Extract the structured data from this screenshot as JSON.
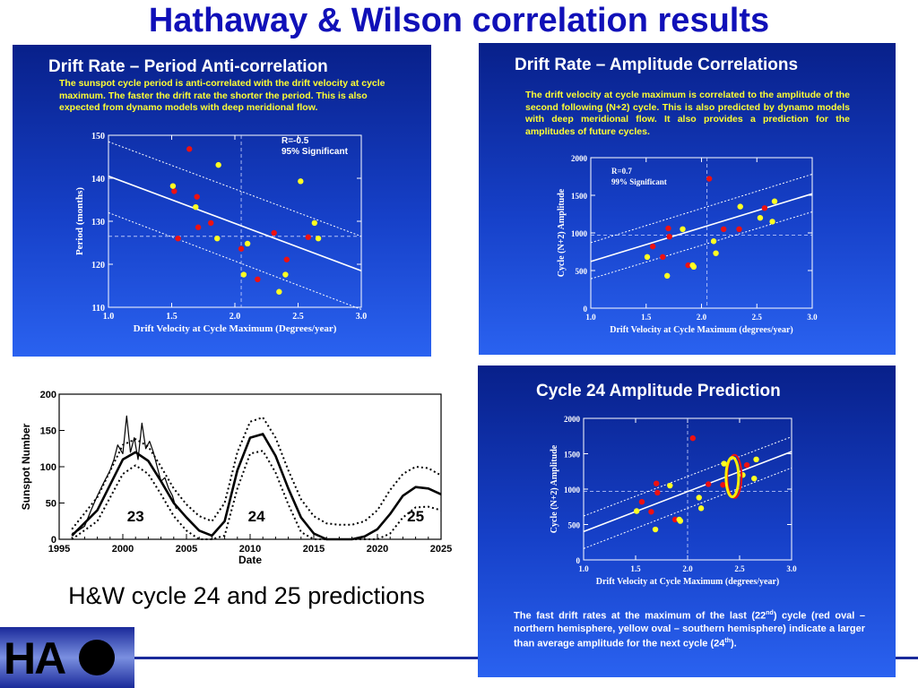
{
  "slide": {
    "title": "Hathaway & Wilson correlation results",
    "caption": "H&W cycle 24 and 25 predictions",
    "logo_text": "HA"
  },
  "panel1": {
    "title": "Drift Rate – Period Anti-correlation",
    "text": "The sunspot cycle period is anti-correlated with the drift velocity at cycle maximum. The faster the drift rate the shorter the period. This is also expected from dynamo models with deep meridional flow."
  },
  "panel2": {
    "title": "Drift Rate – Amplitude Correlations",
    "text": "The drift velocity at cycle maximum is correlated to the amplitude of the second following (N+2) cycle. This is also predicted by dynamo models with deep meridional flow. It also provides a prediction for the amplitudes of future cycles."
  },
  "panel3": {
    "title": "Cycle 24 Amplitude Prediction",
    "text_before": "The fast drift rates at the maximum of the last (22",
    "text_sup1": "nd",
    "text_mid": ") cycle (red oval – northern hemisphere, yellow oval – southern hemisphere) indicate a larger than average amplitude for the next cycle (24",
    "text_sup2": "th",
    "text_after": ")."
  },
  "colors": {
    "red_points": "#ee1111",
    "yellow_points": "#ffff22",
    "title_blue": "#1010b8"
  },
  "chart_data": [
    {
      "type": "scatter",
      "xlabel": "Drift Velocity at Cycle Maximum (Degrees/year)",
      "ylabel": "Period (months)",
      "xlim": [
        1.0,
        3.0
      ],
      "ylim": [
        110,
        150
      ],
      "xticks": [
        "1.0",
        "1.5",
        "2.0",
        "2.5",
        "3.0"
      ],
      "yticks": [
        "110",
        "120",
        "130",
        "140",
        "150"
      ],
      "annotation": [
        "R=-0.5",
        "95% Significant"
      ],
      "mean_x": 2.05,
      "mean_y": 126.5,
      "fit": {
        "x": [
          1.0,
          3.0
        ],
        "y": [
          140.5,
          118.5
        ]
      },
      "bound_upper": {
        "x": [
          1.0,
          3.0
        ],
        "y": [
          148.5,
          126.5
        ]
      },
      "bound_lower": {
        "x": [
          1.0,
          3.0
        ],
        "y": [
          132.0,
          109.5
        ]
      },
      "series": [
        {
          "name": "",
          "color": "red",
          "x": [
            1.52,
            1.55,
            1.64,
            1.7,
            1.71,
            1.81,
            2.05,
            2.18,
            2.31,
            2.41,
            2.58
          ],
          "y": [
            137.0,
            126.0,
            146.8,
            135.7,
            128.6,
            129.6,
            123.6,
            116.5,
            127.3,
            121.1,
            126.3
          ]
        },
        {
          "name": "",
          "color": "yellow",
          "x": [
            1.51,
            1.69,
            1.87,
            1.86,
            2.07,
            2.1,
            2.35,
            2.4,
            2.52,
            2.63,
            2.66
          ],
          "y": [
            138.2,
            133.3,
            143.1,
            126.0,
            117.6,
            124.8,
            113.6,
            117.6,
            139.3,
            129.6,
            126.0
          ]
        }
      ]
    },
    {
      "type": "scatter",
      "xlabel": "Drift Velocity at Cycle Maximum (degrees/year)",
      "ylabel": "Cycle (N+2) Amplitude",
      "xlim": [
        1.0,
        3.0
      ],
      "ylim": [
        0,
        2000
      ],
      "xticks": [
        "1.0",
        "1.5",
        "2.0",
        "2.5",
        "3.0"
      ],
      "yticks": [
        "0",
        "500",
        "1000",
        "1500",
        "2000"
      ],
      "annotation": [
        "R=0.7",
        "99% Significant"
      ],
      "mean_x": 2.05,
      "mean_y": 970,
      "fit": {
        "x": [
          1.0,
          3.0
        ],
        "y": [
          620,
          1520
        ]
      },
      "bound_upper": {
        "x": [
          1.0,
          3.0
        ],
        "y": [
          870,
          1780
        ]
      },
      "bound_lower": {
        "x": [
          1.0,
          3.0
        ],
        "y": [
          390,
          1280
        ]
      },
      "series": [
        {
          "name": "",
          "color": "red",
          "x": [
            1.56,
            1.65,
            1.7,
            1.71,
            1.88,
            2.07,
            2.2,
            2.34,
            2.57
          ],
          "y": [
            820,
            680,
            1060,
            950,
            570,
            1720,
            1050,
            1050,
            1330
          ]
        },
        {
          "name": "",
          "color": "yellow",
          "x": [
            1.51,
            1.69,
            1.83,
            1.92,
            1.93,
            2.11,
            2.13,
            2.35,
            2.53,
            2.64,
            2.66
          ],
          "y": [
            680,
            430,
            1050,
            570,
            550,
            890,
            730,
            1350,
            1200,
            1150,
            1420
          ]
        }
      ]
    },
    {
      "type": "line",
      "xlabel": "Date",
      "ylabel": "Sunspot Number",
      "xlim": [
        1995,
        2025
      ],
      "ylim": [
        0,
        200
      ],
      "xticks": [
        "1995",
        "2000",
        "2005",
        "2010",
        "2015",
        "2020",
        "2025"
      ],
      "yticks": [
        "0",
        "50",
        "100",
        "150",
        "200"
      ],
      "cycle_labels": [
        {
          "text": "23",
          "x": 2001,
          "y": 25
        },
        {
          "text": "24",
          "x": 2010.5,
          "y": 25
        },
        {
          "text": "25",
          "x": 2023,
          "y": 25
        }
      ],
      "series": [
        {
          "name": "",
          "style": "observed",
          "x": [
            1996.0,
            1996.5,
            1997.0,
            1997.5,
            1998.0,
            1998.5,
            1999.0,
            1999.3,
            1999.6,
            2000.0,
            2000.3,
            2000.6,
            2000.9,
            2001.2,
            2001.5,
            2001.8,
            2002.1,
            2002.4,
            2002.7,
            2003.0,
            2003.3,
            2003.6,
            2003.9,
            2004.2
          ],
          "y": [
            8,
            12,
            18,
            40,
            60,
            78,
            95,
            110,
            130,
            118,
            170,
            120,
            140,
            110,
            160,
            125,
            135,
            120,
            100,
            80,
            85,
            70,
            60,
            42
          ]
        },
        {
          "name": "",
          "style": "prediction",
          "x": [
            1996,
            1998,
            2000,
            2001,
            2002,
            2003,
            2004,
            2005,
            2006,
            2007,
            2008,
            2009,
            2010,
            2011,
            2012,
            2013,
            2014,
            2015,
            2016,
            2017,
            2018,
            2019,
            2020,
            2021,
            2022,
            2023,
            2024,
            2025
          ],
          "y": [
            5,
            40,
            110,
            120,
            108,
            80,
            50,
            30,
            12,
            5,
            25,
            95,
            140,
            145,
            115,
            70,
            30,
            8,
            0,
            0,
            0,
            4,
            14,
            35,
            60,
            72,
            70,
            62
          ]
        },
        {
          "name": "",
          "style": "upper",
          "x": [
            1996,
            1998,
            2000,
            2001,
            2002,
            2003,
            2004,
            2005,
            2006,
            2007,
            2008,
            2009,
            2010,
            2011,
            2012,
            2013,
            2014,
            2015,
            2016,
            2017,
            2018,
            2019,
            2020,
            2021,
            2022,
            2023,
            2024,
            2025
          ],
          "y": [
            14,
            58,
            130,
            138,
            128,
            100,
            70,
            48,
            32,
            25,
            50,
            120,
            162,
            168,
            140,
            95,
            55,
            32,
            22,
            20,
            20,
            25,
            40,
            68,
            90,
            100,
            98,
            88
          ]
        },
        {
          "name": "",
          "style": "lower",
          "x": [
            1996,
            1998,
            2000,
            2001,
            2002,
            2003,
            2004,
            2005,
            2006,
            2007,
            2008,
            2009,
            2010,
            2011,
            2012,
            2013,
            2014,
            2015,
            2016,
            2017,
            2018,
            2019,
            2020,
            2021,
            2022,
            2023,
            2024,
            2025
          ],
          "y": [
            0,
            25,
            90,
            102,
            90,
            62,
            32,
            12,
            0,
            0,
            5,
            70,
            118,
            122,
            92,
            48,
            10,
            0,
            0,
            0,
            0,
            0,
            0,
            8,
            30,
            44,
            45,
            40
          ]
        }
      ]
    },
    {
      "type": "scatter",
      "xlabel": "Drift Velocity at Cycle Maximum (degrees/year)",
      "ylabel": "Cycle (N+2) Amplitude",
      "xlim": [
        1.0,
        3.0
      ],
      "ylim": [
        0,
        2000
      ],
      "xticks": [
        "1.0",
        "1.5",
        "2.0",
        "2.5",
        "3.0"
      ],
      "yticks": [
        "0",
        "500",
        "1000",
        "1500",
        "2000"
      ],
      "mean_x": 2.0,
      "mean_y": 970,
      "fit": {
        "x": [
          1.0,
          3.0
        ],
        "y": [
          400,
          1530
        ]
      },
      "bound_upper": {
        "x": [
          1.0,
          3.0
        ],
        "y": [
          620,
          1740
        ]
      },
      "bound_lower": {
        "x": [
          1.0,
          3.0
        ],
        "y": [
          160,
          1300
        ]
      },
      "ovals": [
        {
          "color": "red",
          "x": 2.45,
          "y": 1180
        },
        {
          "color": "yellow",
          "x": 2.43,
          "y": 1170
        }
      ],
      "series": [
        {
          "name": "",
          "color": "red",
          "x": [
            1.56,
            1.65,
            1.7,
            1.71,
            1.88,
            2.05,
            2.2,
            2.34,
            2.57
          ],
          "y": [
            820,
            680,
            1080,
            950,
            570,
            1720,
            1070,
            1060,
            1340
          ]
        },
        {
          "name": "",
          "color": "yellow",
          "x": [
            1.51,
            1.69,
            1.83,
            1.92,
            1.93,
            2.11,
            2.13,
            2.35,
            2.53,
            2.64,
            2.66
          ],
          "y": [
            690,
            430,
            1050,
            570,
            550,
            880,
            730,
            1360,
            1200,
            1150,
            1420
          ]
        }
      ]
    }
  ]
}
